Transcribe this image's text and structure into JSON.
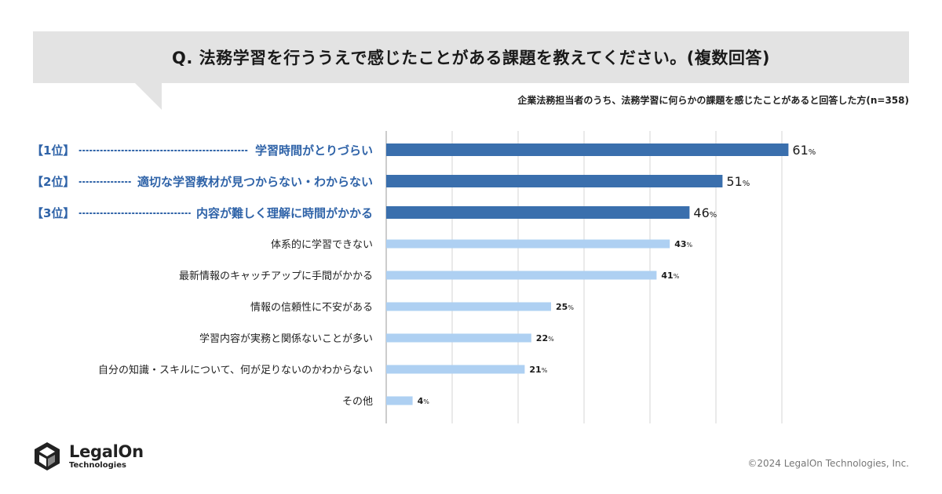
{
  "question": "Q. 法務学習を行ううえで感じたことがある課題を教えてください。(複数回答)",
  "subtitle": "企業法務担当者のうち、法務学習に何らかの課題を感じたことがあると回答した方(n=358)",
  "chart_data": {
    "type": "bar",
    "orientation": "horizontal",
    "title": "Q. 法務学習を行ううえで感じたことがある課題を教えてください。(複数回答)",
    "subtitle": "企業法務担当者のうち、法務学習に何らかの課題を感じたことがあると回答した方(n=358)",
    "xlim": [
      0,
      100
    ],
    "grid": true,
    "unit": "%",
    "categories": [
      {
        "rank": "【1位】",
        "label": "学習時間がとりづらい",
        "value": 61,
        "highlight": true
      },
      {
        "rank": "【2位】",
        "label": "適切な学習教材が見つからない・わからない",
        "value": 51,
        "highlight": true
      },
      {
        "rank": "【3位】",
        "label": "内容が難しく理解に時間がかかる",
        "value": 46,
        "highlight": true
      },
      {
        "rank": "",
        "label": "体系的に学習できない",
        "value": 43,
        "highlight": false
      },
      {
        "rank": "",
        "label": "最新情報のキャッチアップに手間がかかる",
        "value": 41,
        "highlight": false
      },
      {
        "rank": "",
        "label": "情報の信頼性に不安がある",
        "value": 25,
        "highlight": false
      },
      {
        "rank": "",
        "label": "学習内容が実務と関係ないことが多い",
        "value": 22,
        "highlight": false
      },
      {
        "rank": "",
        "label": "自分の知識・スキルについて、何が足りないのかわからない",
        "value": 21,
        "highlight": false
      },
      {
        "rank": "",
        "label": "その他",
        "value": 4,
        "highlight": false
      }
    ],
    "colors": {
      "highlight_bar": "#3a6fad",
      "normal_bar": "#aed0f2",
      "highlight_text": "#2f63a8",
      "grid": "#d6d6d6"
    }
  },
  "logo": {
    "name": "LegalOn",
    "sub": "Technologies"
  },
  "copyright": "©2024 LegalOn Technologies, Inc."
}
